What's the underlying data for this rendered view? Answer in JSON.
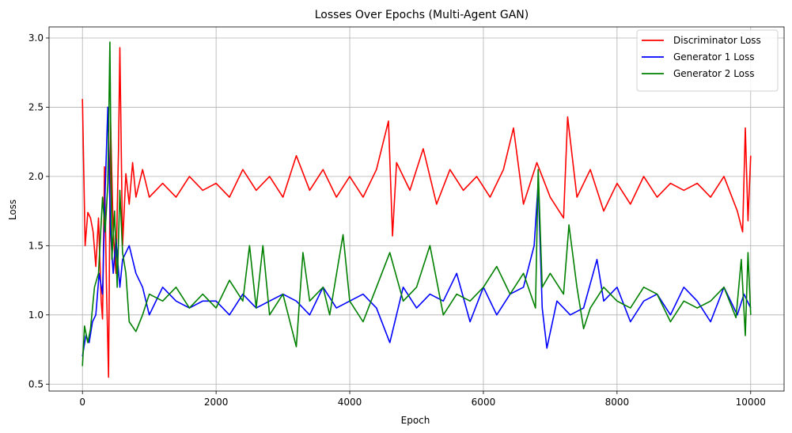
{
  "chart_data": {
    "type": "line",
    "title": "Losses Over Epochs (Multi-Agent GAN)",
    "xlabel": "Epoch",
    "ylabel": "Loss",
    "xlim": [
      -500,
      10500
    ],
    "ylim": [
      0.45,
      3.08
    ],
    "xticks": [
      0,
      2000,
      4000,
      6000,
      8000,
      10000
    ],
    "xtick_labels": [
      "0",
      "2000",
      "4000",
      "6000",
      "8000",
      "10000"
    ],
    "yticks": [
      0.5,
      1.0,
      1.5,
      2.0,
      2.5,
      3.0
    ],
    "ytick_labels": [
      "0.5",
      "1.0",
      "1.5",
      "2.0",
      "2.5",
      "3.0"
    ],
    "grid": true,
    "legend_position": "top-right",
    "series": [
      {
        "name": "Discriminator Loss",
        "color": "#ff0000",
        "points": [
          [
            0,
            2.56
          ],
          [
            40,
            1.5
          ],
          [
            80,
            1.74
          ],
          [
            120,
            1.7
          ],
          [
            160,
            1.6
          ],
          [
            200,
            1.35
          ],
          [
            240,
            1.7
          ],
          [
            280,
            1.1
          ],
          [
            300,
            0.97
          ],
          [
            330,
            2.07
          ],
          [
            360,
            1.2
          ],
          [
            390,
            0.55
          ],
          [
            420,
            2.4
          ],
          [
            460,
            1.6
          ],
          [
            500,
            1.3
          ],
          [
            540,
            2.2
          ],
          [
            560,
            2.93
          ],
          [
            600,
            1.5
          ],
          [
            650,
            2.02
          ],
          [
            700,
            1.8
          ],
          [
            750,
            2.1
          ],
          [
            800,
            1.85
          ],
          [
            900,
            2.05
          ],
          [
            1000,
            1.85
          ],
          [
            1200,
            1.95
          ],
          [
            1400,
            1.85
          ],
          [
            1600,
            2.0
          ],
          [
            1800,
            1.9
          ],
          [
            2000,
            1.95
          ],
          [
            2200,
            1.85
          ],
          [
            2400,
            2.05
          ],
          [
            2600,
            1.9
          ],
          [
            2800,
            2.0
          ],
          [
            3000,
            1.85
          ],
          [
            3200,
            2.15
          ],
          [
            3400,
            1.9
          ],
          [
            3600,
            2.05
          ],
          [
            3800,
            1.85
          ],
          [
            4000,
            2.0
          ],
          [
            4200,
            1.85
          ],
          [
            4400,
            2.05
          ],
          [
            4580,
            2.4
          ],
          [
            4640,
            1.57
          ],
          [
            4700,
            2.1
          ],
          [
            4900,
            1.9
          ],
          [
            5100,
            2.2
          ],
          [
            5300,
            1.8
          ],
          [
            5500,
            2.05
          ],
          [
            5700,
            1.9
          ],
          [
            5900,
            2.0
          ],
          [
            6100,
            1.85
          ],
          [
            6300,
            2.05
          ],
          [
            6450,
            2.35
          ],
          [
            6600,
            1.8
          ],
          [
            6800,
            2.1
          ],
          [
            7000,
            1.85
          ],
          [
            7200,
            1.7
          ],
          [
            7260,
            2.43
          ],
          [
            7400,
            1.85
          ],
          [
            7600,
            2.05
          ],
          [
            7800,
            1.75
          ],
          [
            8000,
            1.95
          ],
          [
            8200,
            1.8
          ],
          [
            8400,
            2.0
          ],
          [
            8600,
            1.85
          ],
          [
            8800,
            1.95
          ],
          [
            9000,
            1.9
          ],
          [
            9200,
            1.95
          ],
          [
            9400,
            1.85
          ],
          [
            9600,
            2.0
          ],
          [
            9800,
            1.75
          ],
          [
            9880,
            1.6
          ],
          [
            9920,
            2.35
          ],
          [
            9960,
            1.68
          ],
          [
            10000,
            2.15
          ]
        ]
      },
      {
        "name": "Generator 1 Loss",
        "color": "#0000ff",
        "points": [
          [
            0,
            0.7
          ],
          [
            50,
            0.85
          ],
          [
            100,
            0.8
          ],
          [
            150,
            0.95
          ],
          [
            200,
            1.0
          ],
          [
            250,
            1.3
          ],
          [
            300,
            1.15
          ],
          [
            340,
            1.9
          ],
          [
            380,
            2.5
          ],
          [
            420,
            1.6
          ],
          [
            460,
            1.3
          ],
          [
            500,
            1.55
          ],
          [
            560,
            1.2
          ],
          [
            600,
            1.4
          ],
          [
            700,
            1.5
          ],
          [
            800,
            1.3
          ],
          [
            900,
            1.2
          ],
          [
            1000,
            1.0
          ],
          [
            1200,
            1.2
          ],
          [
            1400,
            1.1
          ],
          [
            1600,
            1.05
          ],
          [
            1800,
            1.1
          ],
          [
            2000,
            1.1
          ],
          [
            2200,
            1.0
          ],
          [
            2400,
            1.15
          ],
          [
            2600,
            1.05
          ],
          [
            2800,
            1.1
          ],
          [
            3000,
            1.15
          ],
          [
            3200,
            1.1
          ],
          [
            3400,
            1.0
          ],
          [
            3600,
            1.2
          ],
          [
            3800,
            1.05
          ],
          [
            4000,
            1.1
          ],
          [
            4200,
            1.15
          ],
          [
            4400,
            1.05
          ],
          [
            4600,
            0.8
          ],
          [
            4800,
            1.2
          ],
          [
            5000,
            1.05
          ],
          [
            5200,
            1.15
          ],
          [
            5400,
            1.1
          ],
          [
            5600,
            1.3
          ],
          [
            5800,
            0.95
          ],
          [
            6000,
            1.2
          ],
          [
            6200,
            1.0
          ],
          [
            6400,
            1.15
          ],
          [
            6600,
            1.2
          ],
          [
            6760,
            1.5
          ],
          [
            6820,
            1.95
          ],
          [
            6880,
            1.05
          ],
          [
            6950,
            0.76
          ],
          [
            7100,
            1.1
          ],
          [
            7300,
            1.0
          ],
          [
            7500,
            1.05
          ],
          [
            7700,
            1.4
          ],
          [
            7800,
            1.1
          ],
          [
            8000,
            1.2
          ],
          [
            8200,
            0.95
          ],
          [
            8400,
            1.1
          ],
          [
            8600,
            1.15
          ],
          [
            8800,
            1.0
          ],
          [
            9000,
            1.2
          ],
          [
            9200,
            1.1
          ],
          [
            9400,
            0.95
          ],
          [
            9600,
            1.2
          ],
          [
            9800,
            1.0
          ],
          [
            9900,
            1.15
          ],
          [
            10000,
            1.05
          ]
        ]
      },
      {
        "name": "Generator 2 Loss",
        "color": "#008000",
        "points": [
          [
            0,
            0.63
          ],
          [
            30,
            0.92
          ],
          [
            80,
            0.8
          ],
          [
            120,
            0.9
          ],
          [
            180,
            1.2
          ],
          [
            240,
            1.3
          ],
          [
            300,
            1.85
          ],
          [
            340,
            1.6
          ],
          [
            380,
            1.95
          ],
          [
            410,
            2.97
          ],
          [
            440,
            1.4
          ],
          [
            480,
            1.75
          ],
          [
            520,
            1.2
          ],
          [
            560,
            1.9
          ],
          [
            600,
            1.45
          ],
          [
            650,
            1.3
          ],
          [
            700,
            0.95
          ],
          [
            800,
            0.88
          ],
          [
            900,
            1.0
          ],
          [
            1000,
            1.15
          ],
          [
            1200,
            1.1
          ],
          [
            1400,
            1.2
          ],
          [
            1600,
            1.05
          ],
          [
            1800,
            1.15
          ],
          [
            2000,
            1.05
          ],
          [
            2200,
            1.25
          ],
          [
            2400,
            1.1
          ],
          [
            2500,
            1.5
          ],
          [
            2600,
            1.05
          ],
          [
            2700,
            1.5
          ],
          [
            2800,
            1.0
          ],
          [
            3000,
            1.15
          ],
          [
            3200,
            0.77
          ],
          [
            3300,
            1.45
          ],
          [
            3400,
            1.1
          ],
          [
            3600,
            1.2
          ],
          [
            3700,
            1.0
          ],
          [
            3900,
            1.58
          ],
          [
            4000,
            1.1
          ],
          [
            4200,
            0.95
          ],
          [
            4400,
            1.2
          ],
          [
            4600,
            1.45
          ],
          [
            4800,
            1.1
          ],
          [
            5000,
            1.2
          ],
          [
            5200,
            1.5
          ],
          [
            5400,
            1.0
          ],
          [
            5600,
            1.15
          ],
          [
            5800,
            1.1
          ],
          [
            6000,
            1.2
          ],
          [
            6200,
            1.35
          ],
          [
            6400,
            1.15
          ],
          [
            6600,
            1.3
          ],
          [
            6780,
            1.05
          ],
          [
            6820,
            2.05
          ],
          [
            6880,
            1.2
          ],
          [
            7000,
            1.3
          ],
          [
            7200,
            1.15
          ],
          [
            7280,
            1.65
          ],
          [
            7400,
            1.2
          ],
          [
            7500,
            0.9
          ],
          [
            7600,
            1.05
          ],
          [
            7800,
            1.2
          ],
          [
            8000,
            1.1
          ],
          [
            8200,
            1.05
          ],
          [
            8400,
            1.2
          ],
          [
            8600,
            1.15
          ],
          [
            8800,
            0.95
          ],
          [
            9000,
            1.1
          ],
          [
            9200,
            1.05
          ],
          [
            9400,
            1.1
          ],
          [
            9600,
            1.2
          ],
          [
            9780,
            0.98
          ],
          [
            9860,
            1.4
          ],
          [
            9920,
            0.85
          ],
          [
            9960,
            1.45
          ],
          [
            10000,
            1.0
          ]
        ]
      }
    ]
  }
}
